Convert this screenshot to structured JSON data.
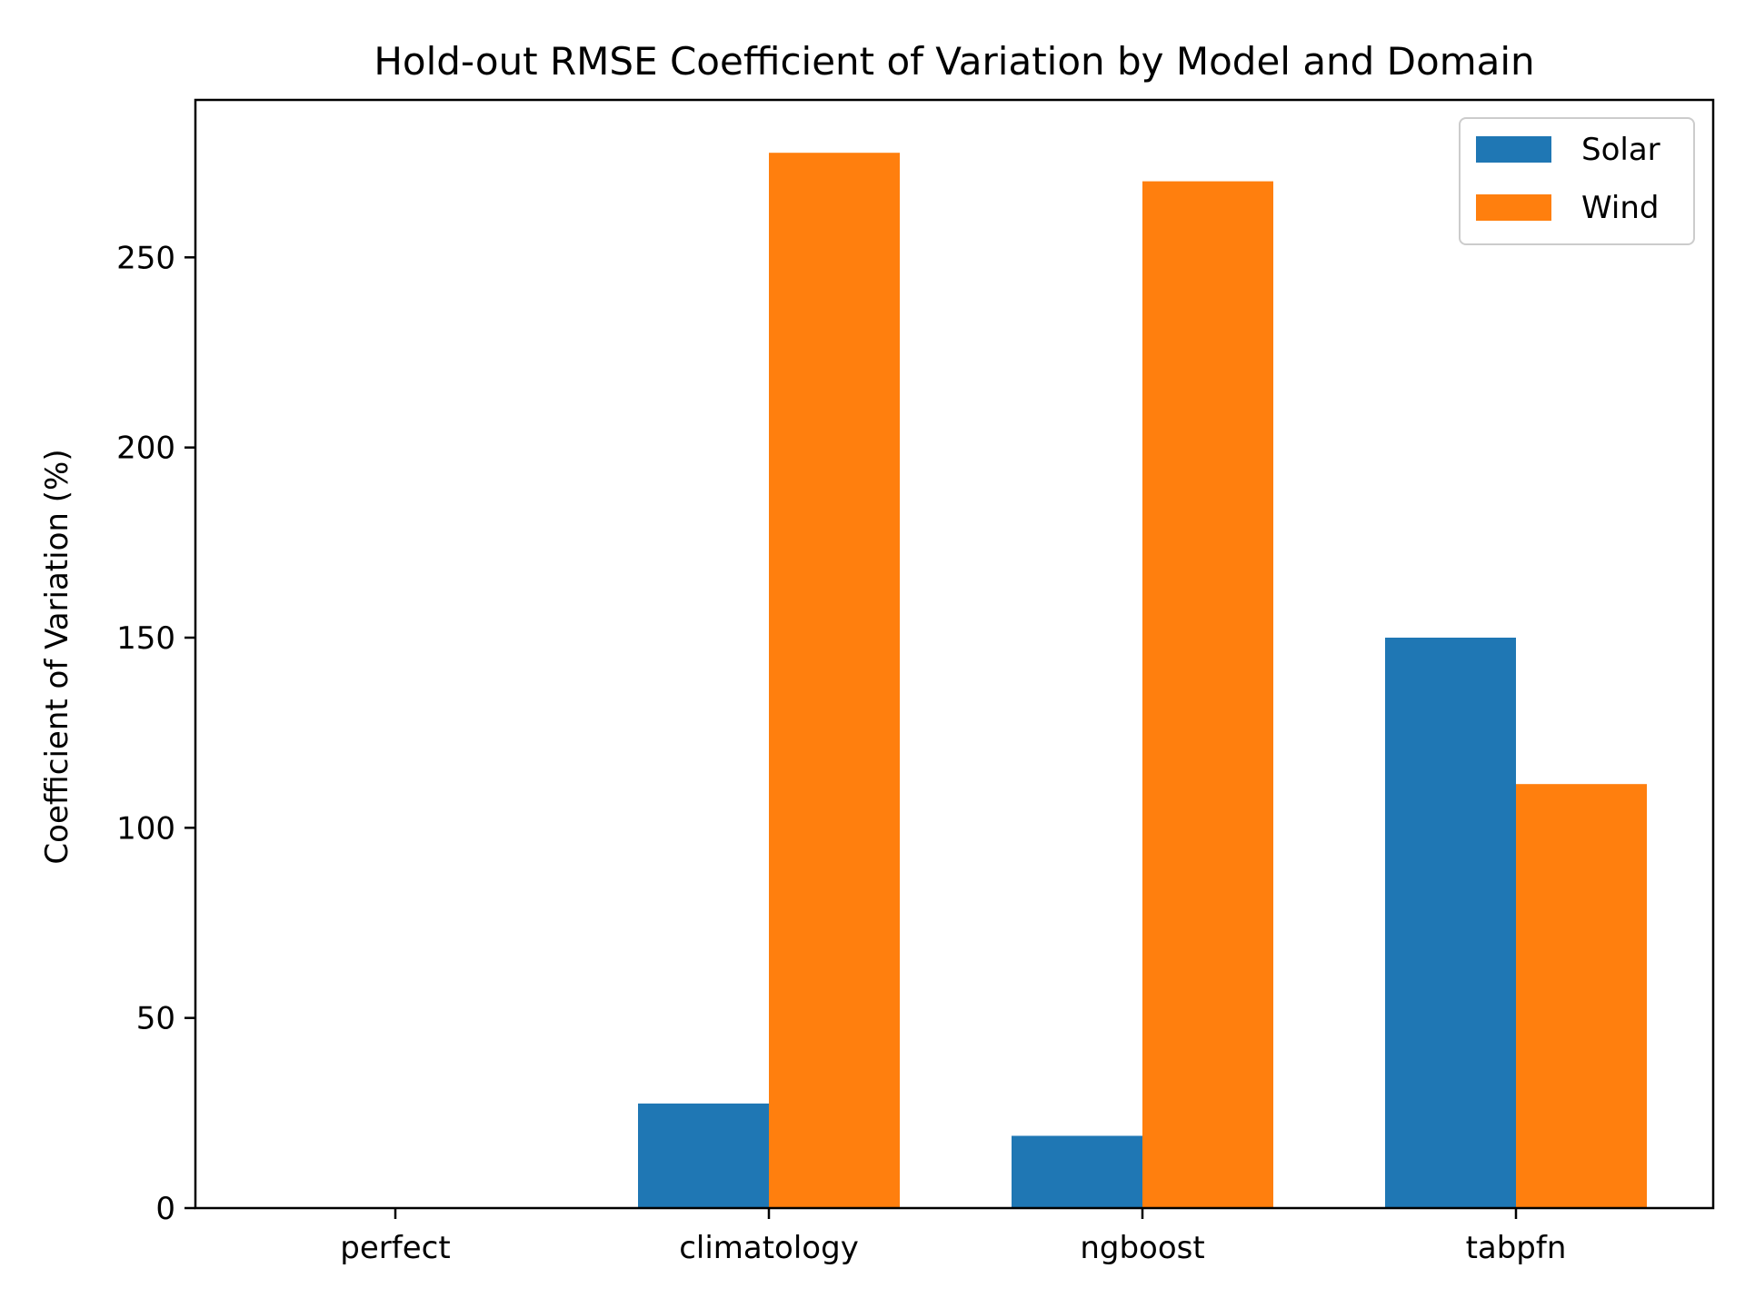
{
  "chart_data": {
    "type": "bar",
    "title": "Hold-out RMSE Coefficient of Variation by Model and Domain",
    "xlabel": "",
    "ylabel": "Coefficient of Variation (%)",
    "categories": [
      "perfect",
      "climatology",
      "ngboost",
      "tabpfn"
    ],
    "series": [
      {
        "name": "Solar",
        "color": "#1f77b4",
        "values": [
          0,
          27.5,
          19,
          150
        ]
      },
      {
        "name": "Wind",
        "color": "#ff7f0e",
        "values": [
          0,
          277.5,
          270,
          111.5
        ]
      }
    ],
    "ylim": [
      0,
      291.4
    ],
    "yticks": [
      0,
      50,
      100,
      150,
      200,
      250
    ],
    "grid": false,
    "legend_position": "top-right"
  }
}
